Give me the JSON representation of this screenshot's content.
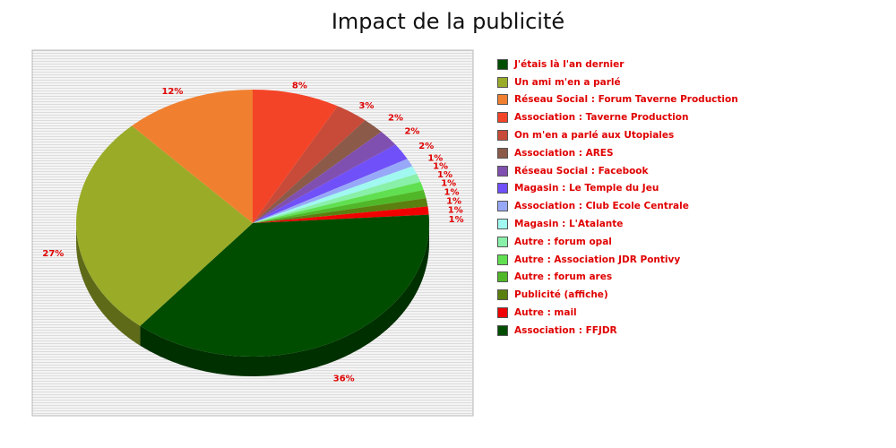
{
  "chart_data": {
    "type": "pie",
    "title": "Impact de la publicité",
    "three_d": true,
    "legend_position": "right",
    "slices": [
      {
        "label": "J'étais là l'an dernier",
        "value": 36,
        "value_label": "36%",
        "color": "#004d00"
      },
      {
        "label": "Un ami m'en a parlé",
        "value": 27,
        "value_label": "27%",
        "color": "#9aab28"
      },
      {
        "label": "Réseau Social : Forum Taverne Production",
        "value": 12,
        "value_label": "12%",
        "color": "#f08030"
      },
      {
        "label": "Association : Taverne Production",
        "value": 8,
        "value_label": "8%",
        "color": "#f44428"
      },
      {
        "label": "On m'en a parlé aux Utopiales",
        "value": 3,
        "value_label": "3%",
        "color": "#c84a38"
      },
      {
        "label": "Association : ARES",
        "value": 2,
        "value_label": "2%",
        "color": "#8b5a48"
      },
      {
        "label": "Réseau Social : Facebook",
        "value": 2,
        "value_label": "2%",
        "color": "#8050b0"
      },
      {
        "label": "Magasin : Le Temple du Jeu",
        "value": 2,
        "value_label": "2%",
        "color": "#7050f8"
      },
      {
        "label": "Association : Club Ecole Centrale",
        "value": 1,
        "value_label": "1%",
        "color": "#98a8f8"
      },
      {
        "label": "Magasin : L'Atalante",
        "value": 1,
        "value_label": "1%",
        "color": "#a0f8f0"
      },
      {
        "label": "Autre : forum opal",
        "value": 1,
        "value_label": "1%",
        "color": "#88f0a8"
      },
      {
        "label": "Autre : Association JDR Pontivy",
        "value": 1,
        "value_label": "1%",
        "color": "#60e050"
      },
      {
        "label": "Autre : forum ares",
        "value": 1,
        "value_label": "1%",
        "color": "#50b828"
      },
      {
        "label": "Publicité (affiche)",
        "value": 1,
        "value_label": "1%",
        "color": "#5a8010"
      },
      {
        "label": "Autre : mail",
        "value": 1,
        "value_label": "1%",
        "color": "#f00000"
      },
      {
        "label": "Association : FFJDR",
        "value": 1,
        "value_label": "1%",
        "color": "#004d00"
      }
    ]
  }
}
